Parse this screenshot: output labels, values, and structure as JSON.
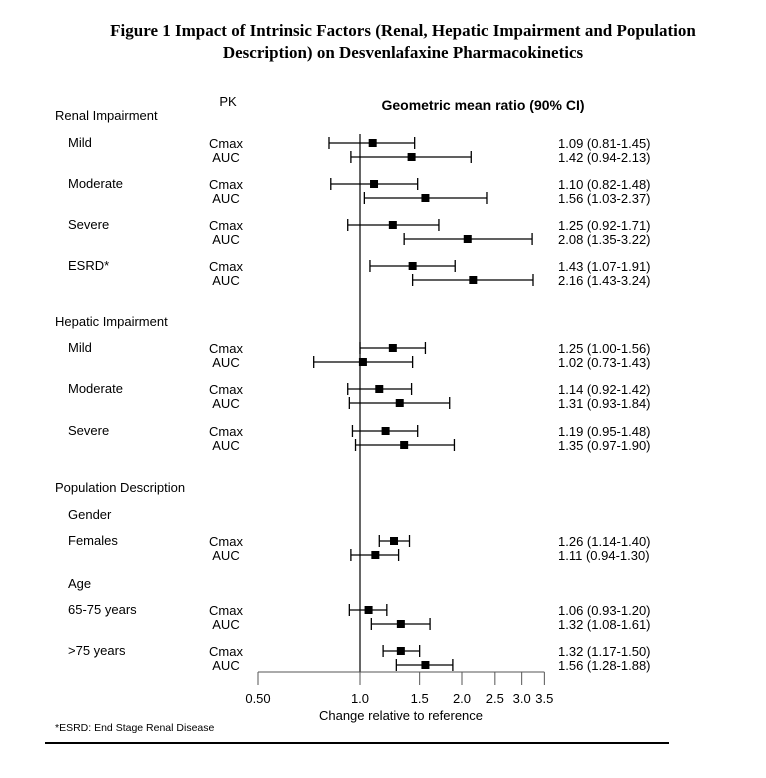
{
  "title_lines": [
    "Figure 1 Impact of Intrinsic Factors (Renal, Hepatic Impairment and Population",
    "Description) on Desvenlafaxine Pharmacokinetics"
  ],
  "footnote": "*ESRD: End Stage Renal Disease",
  "chart_data": {
    "type": "forest",
    "title": "Figure 1 Impact of Intrinsic Factors (Renal, Hepatic Impairment and Population Description) on Desvenlafaxine Pharmacokinetics",
    "column_header_pk": "PK",
    "column_header_ratio": "Geometric mean ratio (90% CI)",
    "xlabel": "Change relative to reference",
    "xscale": "log",
    "xlim": [
      0.5,
      3.5
    ],
    "reference_value": 1.0,
    "xticks": [
      0.5,
      1.0,
      1.5,
      2.0,
      2.5,
      3.0,
      3.5
    ],
    "xtick_labels": [
      "0.50",
      "1.0",
      "1.5",
      "2.0",
      "2.5",
      "3.0",
      "3.5"
    ],
    "sections": [
      {
        "label": "Renal Impairment",
        "groups": [
          {
            "label": "Mild",
            "rows": [
              {
                "pk": "Cmax",
                "gmr": 1.09,
                "lo": 0.81,
                "hi": 1.45,
                "text": "1.09 (0.81-1.45)"
              },
              {
                "pk": "AUC",
                "gmr": 1.42,
                "lo": 0.94,
                "hi": 2.13,
                "text": "1.42 (0.94-2.13)"
              }
            ]
          },
          {
            "label": "Moderate",
            "rows": [
              {
                "pk": "Cmax",
                "gmr": 1.1,
                "lo": 0.82,
                "hi": 1.48,
                "text": "1.10 (0.82-1.48)"
              },
              {
                "pk": "AUC",
                "gmr": 1.56,
                "lo": 1.03,
                "hi": 2.37,
                "text": "1.56 (1.03-2.37)"
              }
            ]
          },
          {
            "label": "Severe",
            "rows": [
              {
                "pk": "Cmax",
                "gmr": 1.25,
                "lo": 0.92,
                "hi": 1.71,
                "text": "1.25 (0.92-1.71)"
              },
              {
                "pk": "AUC",
                "gmr": 2.08,
                "lo": 1.35,
                "hi": 3.22,
                "text": "2.08 (1.35-3.22)"
              }
            ]
          },
          {
            "label": "ESRD*",
            "rows": [
              {
                "pk": "Cmax",
                "gmr": 1.43,
                "lo": 1.07,
                "hi": 1.91,
                "text": "1.43 (1.07-1.91)"
              },
              {
                "pk": "AUC",
                "gmr": 2.16,
                "lo": 1.43,
                "hi": 3.24,
                "text": "2.16 (1.43-3.24)"
              }
            ]
          }
        ]
      },
      {
        "label": "Hepatic Impairment",
        "groups": [
          {
            "label": "Mild",
            "rows": [
              {
                "pk": "Cmax",
                "gmr": 1.25,
                "lo": 1.0,
                "hi": 1.56,
                "text": "1.25 (1.00-1.56)"
              },
              {
                "pk": "AUC",
                "gmr": 1.02,
                "lo": 0.73,
                "hi": 1.43,
                "text": "1.02 (0.73-1.43)"
              }
            ]
          },
          {
            "label": "Moderate",
            "rows": [
              {
                "pk": "Cmax",
                "gmr": 1.14,
                "lo": 0.92,
                "hi": 1.42,
                "text": "1.14 (0.92-1.42)"
              },
              {
                "pk": "AUC",
                "gmr": 1.31,
                "lo": 0.93,
                "hi": 1.84,
                "text": "1.31 (0.93-1.84)"
              }
            ]
          },
          {
            "label": "Severe",
            "rows": [
              {
                "pk": "Cmax",
                "gmr": 1.19,
                "lo": 0.95,
                "hi": 1.48,
                "text": "1.19 (0.95-1.48)"
              },
              {
                "pk": "AUC",
                "gmr": 1.35,
                "lo": 0.97,
                "hi": 1.9,
                "text": "1.35 (0.97-1.90)"
              }
            ]
          }
        ]
      },
      {
        "label": "Population Description",
        "subheaders": [
          "Gender",
          "Age"
        ],
        "groups": [
          {
            "subheader": "Gender",
            "label": "Females",
            "rows": [
              {
                "pk": "Cmax",
                "gmr": 1.26,
                "lo": 1.14,
                "hi": 1.4,
                "text": "1.26 (1.14-1.40)"
              },
              {
                "pk": "AUC",
                "gmr": 1.11,
                "lo": 0.94,
                "hi": 1.3,
                "text": "1.11 (0.94-1.30)"
              }
            ]
          },
          {
            "subheader": "Age",
            "label": "65-75 years",
            "rows": [
              {
                "pk": "Cmax",
                "gmr": 1.06,
                "lo": 0.93,
                "hi": 1.2,
                "text": "1.06 (0.93-1.20)"
              },
              {
                "pk": "AUC",
                "gmr": 1.32,
                "lo": 1.08,
                "hi": 1.61,
                "text": "1.32 (1.08-1.61)"
              }
            ]
          },
          {
            "label": ">75 years",
            "rows": [
              {
                "pk": "Cmax",
                "gmr": 1.32,
                "lo": 1.17,
                "hi": 1.5,
                "text": "1.32 (1.17-1.50)"
              },
              {
                "pk": "AUC",
                "gmr": 1.56,
                "lo": 1.28,
                "hi": 1.88,
                "text": "1.56 (1.28-1.88)"
              }
            ]
          }
        ]
      }
    ]
  }
}
